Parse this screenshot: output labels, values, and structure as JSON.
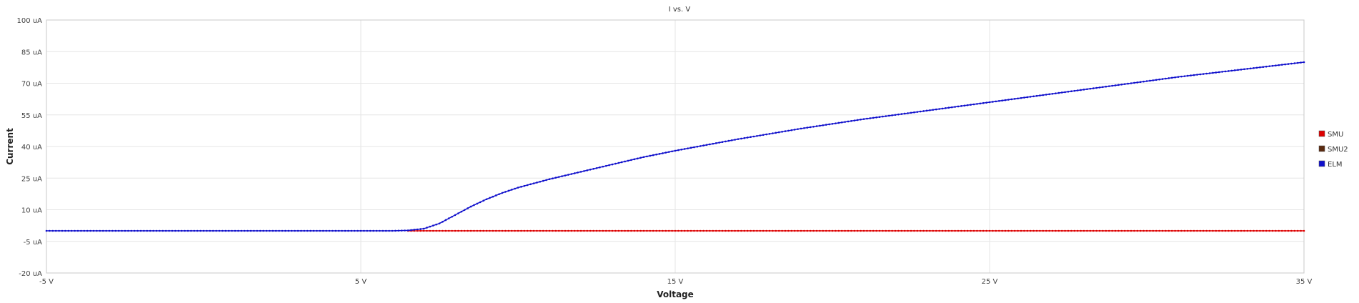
{
  "chart_data": {
    "type": "line",
    "title": "I vs. V",
    "xlabel": "Voltage",
    "ylabel": "Current",
    "xlim": [
      -5,
      35
    ],
    "ylim": [
      -20,
      100
    ],
    "grid": true,
    "legend_position": "right",
    "x_ticks": [
      {
        "value": -5,
        "label": "-5 V"
      },
      {
        "value": 5,
        "label": "5 V"
      },
      {
        "value": 15,
        "label": "15 V"
      },
      {
        "value": 25,
        "label": "25 V"
      },
      {
        "value": 35,
        "label": "35 V"
      }
    ],
    "y_ticks": [
      {
        "value": -20,
        "label": "-20 uA"
      },
      {
        "value": -5,
        "label": "-5 uA"
      },
      {
        "value": 10,
        "label": "10 uA"
      },
      {
        "value": 25,
        "label": "25 uA"
      },
      {
        "value": 40,
        "label": "40 uA"
      },
      {
        "value": 55,
        "label": "55 uA"
      },
      {
        "value": 70,
        "label": "70 uA"
      },
      {
        "value": 85,
        "label": "85 uA"
      },
      {
        "value": 100,
        "label": "100 uA"
      }
    ],
    "series": [
      {
        "name": "SMU",
        "color": "#dd0000",
        "x": [
          6.5,
          35
        ],
        "y": [
          0,
          0
        ]
      },
      {
        "name": "SMU2",
        "color": "#5a2a10",
        "x": [],
        "y": []
      },
      {
        "name": "ELM",
        "color": "#1010cc",
        "x": [
          -5,
          0,
          5,
          6,
          6.5,
          7,
          7.5,
          8,
          8.5,
          9,
          9.5,
          10,
          11,
          12,
          13,
          14,
          15,
          17,
          19,
          21,
          23,
          25,
          27,
          29,
          31,
          33,
          35
        ],
        "y": [
          0,
          0,
          0,
          0,
          0.2,
          1,
          3.5,
          7.5,
          11.5,
          15,
          18,
          20.5,
          24.5,
          28,
          31.5,
          35,
          38,
          43.5,
          48.5,
          53,
          57,
          61,
          65,
          69,
          73,
          76.5,
          80
        ]
      }
    ]
  }
}
